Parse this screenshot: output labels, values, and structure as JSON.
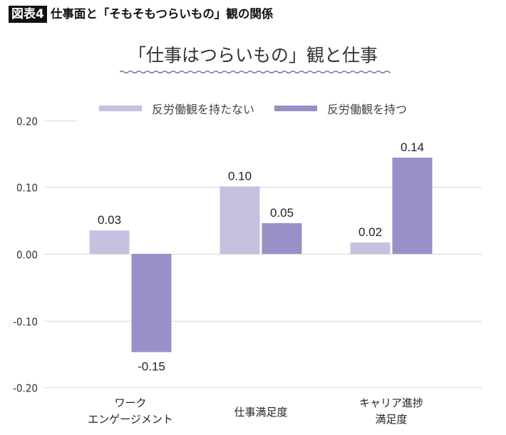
{
  "figure": {
    "badge": "図表4",
    "title": "仕事面と「そもそもつらいもの」観の関係"
  },
  "chart_data": {
    "type": "bar",
    "title": "「仕事はつらいもの」観と仕事",
    "xlabel": "",
    "ylabel": "",
    "ylim": [
      -0.2,
      0.2
    ],
    "yticks": [
      0.2,
      0.1,
      0.0,
      -0.1,
      -0.2
    ],
    "ytick_labels": [
      "0.20",
      "0.10",
      "0.00",
      "-0.10",
      "-0.20"
    ],
    "grid": true,
    "legend_position": "top-center",
    "categories": [
      [
        "ワーク",
        "エンゲージメント"
      ],
      [
        "仕事満足度"
      ],
      [
        "キャリア進捗",
        "満足度"
      ]
    ],
    "series": [
      {
        "name": "反労働観を持たない",
        "color": "#c5c1e0",
        "values": [
          0.035,
          0.101,
          0.017
        ],
        "labels": [
          "0.03",
          "0.10",
          "0.02"
        ]
      },
      {
        "name": "反労働観を持つ",
        "color": "#9990c8",
        "values": [
          -0.147,
          0.046,
          0.144
        ],
        "labels": [
          "-0.15",
          "0.05",
          "0.14"
        ]
      }
    ]
  }
}
